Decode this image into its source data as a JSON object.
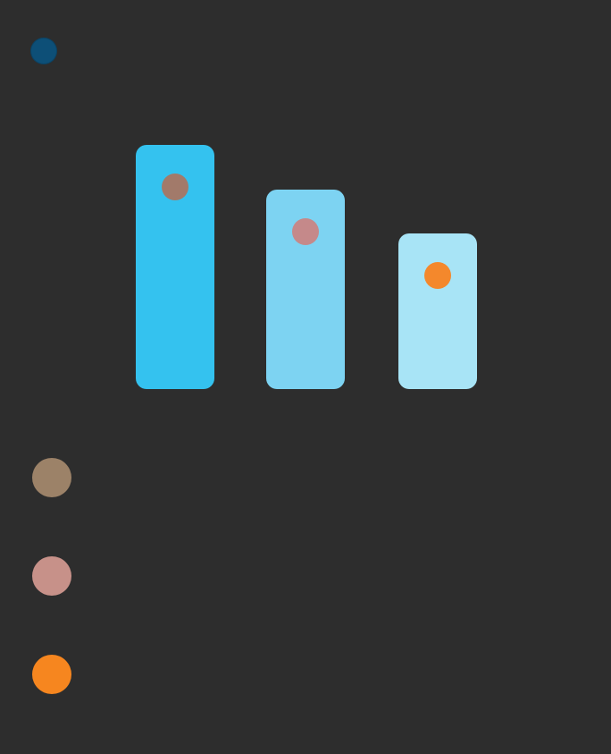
{
  "header": {
    "title": "",
    "subtitle": "",
    "accent_color": "#0d4f77"
  },
  "chart_data": {
    "type": "bar",
    "categories": [
      "",
      "",
      ""
    ],
    "values": [
      88,
      72,
      56
    ],
    "ylim": [
      0,
      100
    ],
    "bar_colors": [
      "#34c2ef",
      "#7dd3f2",
      "#a8e4f6"
    ],
    "marker_colors": [
      "#a27a6a",
      "#c5898a",
      "#f4882c"
    ]
  },
  "legend": {
    "items": [
      {
        "name": "",
        "sub": "",
        "value": "",
        "color": "#9c8268"
      },
      {
        "name": "",
        "sub": "",
        "value": "",
        "color": "#c79189"
      },
      {
        "name": "",
        "sub": "",
        "value": "",
        "color": "#f6861f"
      }
    ]
  }
}
